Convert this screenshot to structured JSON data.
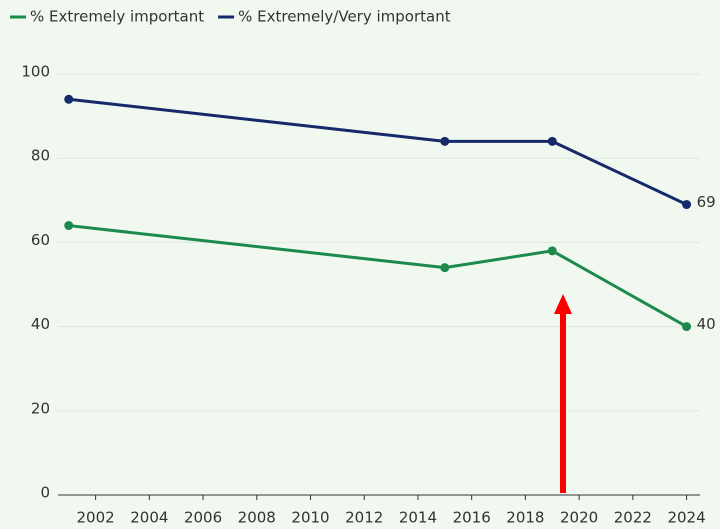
{
  "chart_data": {
    "type": "line",
    "x": [
      2001,
      2015,
      2019,
      2024
    ],
    "series": [
      {
        "name": "% Extremely important",
        "color": "#1b8a4c",
        "values": [
          64,
          54,
          58,
          40
        ]
      },
      {
        "name": "% Extremely/Very important",
        "color": "#15296b",
        "values": [
          94,
          84,
          84,
          69
        ]
      }
    ],
    "xlim": [
      2000.6,
      2024.5
    ],
    "xticks": [
      2002,
      2004,
      2006,
      2008,
      2010,
      2012,
      2014,
      2016,
      2018,
      2020,
      2022,
      2024
    ],
    "ylim": [
      0,
      100
    ],
    "yticks": [
      0,
      20,
      40,
      60,
      80,
      100
    ],
    "grid": true,
    "legend": "top-left"
  }
}
